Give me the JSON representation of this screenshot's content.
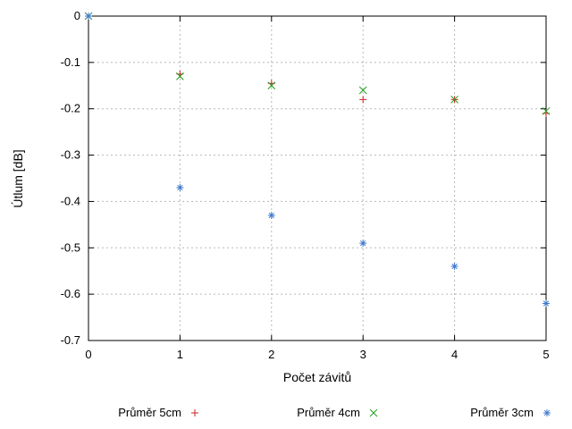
{
  "chart_data": {
    "type": "scatter",
    "title": "",
    "xlabel": "Počet závitů",
    "ylabel": "Útlum [dB]",
    "xlim": [
      0,
      5
    ],
    "ylim": [
      -0.7,
      0
    ],
    "x_ticks": [
      "0",
      "1",
      "2",
      "3",
      "4",
      "5"
    ],
    "y_ticks": [
      "0",
      "-0.1",
      "-0.2",
      "-0.3",
      "-0.4",
      "-0.5",
      "-0.6",
      "-0.7"
    ],
    "grid": true,
    "legend_position": "bottom",
    "colors": {
      "grid": "#b8b8b8",
      "border": "#000000"
    },
    "series": [
      {
        "name": "Průměr 5cm",
        "marker": "plus",
        "color": "#cc2222",
        "x": [
          0,
          1,
          2,
          3,
          4,
          5
        ],
        "y": [
          0,
          -0.125,
          -0.145,
          -0.18,
          -0.18,
          -0.21
        ]
      },
      {
        "name": "Průměr 4cm",
        "marker": "cross",
        "color": "#22a022",
        "x": [
          0,
          1,
          2,
          3,
          4,
          5
        ],
        "y": [
          0,
          -0.13,
          -0.15,
          -0.16,
          -0.18,
          -0.205
        ]
      },
      {
        "name": "Průměr 3cm",
        "marker": "asterisk",
        "color": "#3e79cc",
        "x": [
          0,
          1,
          2,
          3,
          4,
          5
        ],
        "y": [
          0,
          -0.37,
          -0.43,
          -0.49,
          -0.54,
          -0.62
        ]
      }
    ]
  }
}
